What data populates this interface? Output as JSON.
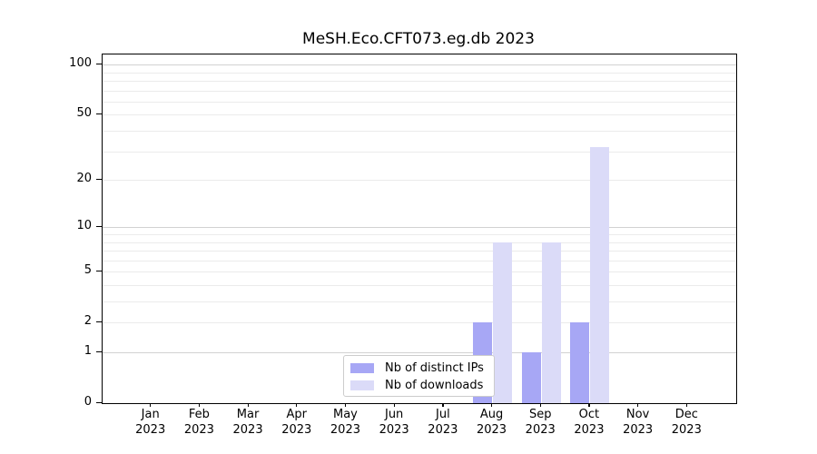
{
  "chart_data": {
    "type": "bar",
    "title": "MeSH.Eco.CFT073.eg.db 2023",
    "x_tick_months": [
      "Jan",
      "Feb",
      "Mar",
      "Apr",
      "May",
      "Jun",
      "Jul",
      "Aug",
      "Sep",
      "Oct",
      "Nov",
      "Dec"
    ],
    "x_tick_year": "2023",
    "series": [
      {
        "name": "Nb of distinct IPs",
        "color": "#a7a7f5",
        "values": [
          0,
          0,
          0,
          0,
          0,
          0,
          0,
          2,
          1,
          2,
          0,
          0
        ]
      },
      {
        "name": "Nb of downloads",
        "color": "#dbdbf8",
        "values": [
          0,
          0,
          0,
          0,
          0,
          0,
          0,
          8,
          8,
          32,
          0,
          0
        ]
      }
    ],
    "y_scale": "log1p",
    "ylim": [
      0,
      115
    ],
    "y_ticks": [
      0,
      1,
      2,
      5,
      10,
      20,
      50,
      100
    ],
    "y_major_gridlines": [
      1,
      10,
      100
    ],
    "y_minor_gridlines": [
      2,
      3,
      4,
      5,
      6,
      7,
      8,
      9,
      20,
      30,
      40,
      50,
      60,
      70,
      80,
      90
    ],
    "grid": {
      "major_color": "#d2d2d2",
      "minor_color": "#ebebeb"
    },
    "axis_color": "#000000",
    "background_color": "#ffffff",
    "legend": {
      "position": "lower center",
      "border_color": "#cccccc",
      "background": "#ffffff"
    }
  }
}
